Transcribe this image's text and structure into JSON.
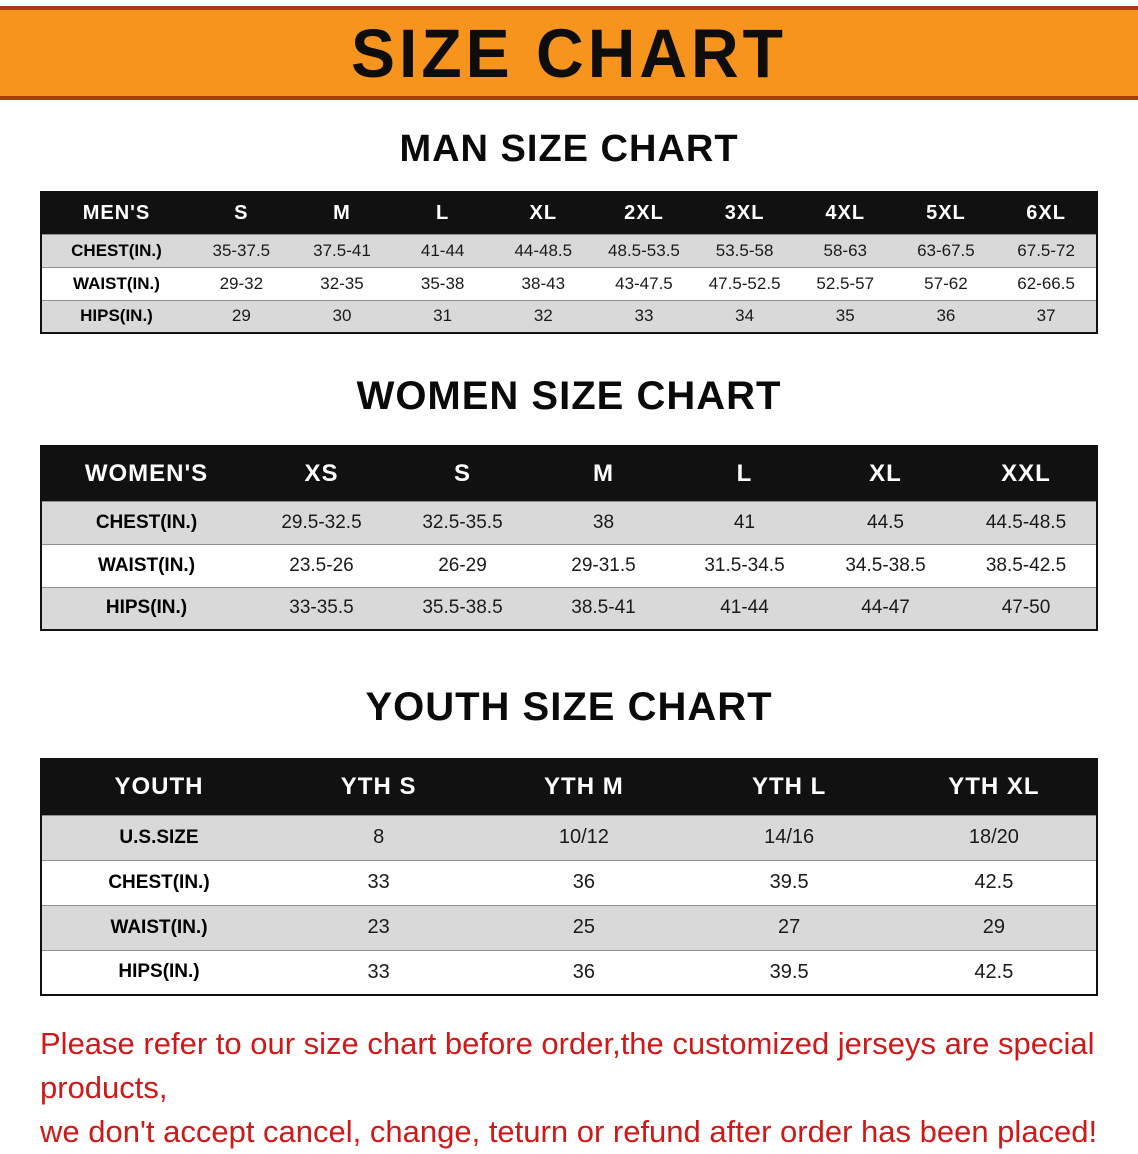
{
  "banner": {
    "title": "SIZE CHART"
  },
  "colors": {
    "banner_bg": "#f7941d",
    "banner_border": "#a83c0a",
    "header_bg": "#111111",
    "row_alt": "#d9d9d9",
    "disclaimer": "#d01818"
  },
  "sections": [
    {
      "heading": "MAN SIZE CHART",
      "table": {
        "header": [
          "MEN'S",
          "S",
          "M",
          "L",
          "XL",
          "2XL",
          "3XL",
          "4XL",
          "5XL",
          "6XL"
        ],
        "rows": [
          {
            "label": "CHEST(IN.)",
            "values": [
              "35-37.5",
              "37.5-41",
              "41-44",
              "44-48.5",
              "48.5-53.5",
              "53.5-58",
              "58-63",
              "63-67.5",
              "67.5-72"
            ]
          },
          {
            "label": "WAIST(IN.)",
            "values": [
              "29-32",
              "32-35",
              "35-38",
              "38-43",
              "43-47.5",
              "47.5-52.5",
              "52.5-57",
              "57-62",
              "62-66.5"
            ]
          },
          {
            "label": "HIPS(IN.)",
            "values": [
              "29",
              "30",
              "31",
              "32",
              "33",
              "34",
              "35",
              "36",
              "37"
            ]
          }
        ]
      }
    },
    {
      "heading": "WOMEN SIZE CHART",
      "table": {
        "header": [
          "WOMEN'S",
          "XS",
          "S",
          "M",
          "L",
          "XL",
          "XXL"
        ],
        "rows": [
          {
            "label": "CHEST(IN.)",
            "values": [
              "29.5-32.5",
              "32.5-35.5",
              "38",
              "41",
              "44.5",
              "44.5-48.5"
            ]
          },
          {
            "label": "WAIST(IN.)",
            "values": [
              "23.5-26",
              "26-29",
              "29-31.5",
              "31.5-34.5",
              "34.5-38.5",
              "38.5-42.5"
            ]
          },
          {
            "label": "HIPS(IN.)",
            "values": [
              "33-35.5",
              "35.5-38.5",
              "38.5-41",
              "41-44",
              "44-47",
              "47-50"
            ]
          }
        ]
      }
    },
    {
      "heading": "YOUTH SIZE CHART",
      "table": {
        "header": [
          "YOUTH",
          "YTH S",
          "YTH M",
          "YTH L",
          "YTH XL"
        ],
        "rows": [
          {
            "label": "U.S.SIZE",
            "values": [
              "8",
              "10/12",
              "14/16",
              "18/20"
            ]
          },
          {
            "label": "CHEST(IN.)",
            "values": [
              "33",
              "36",
              "39.5",
              "42.5"
            ]
          },
          {
            "label": "WAIST(IN.)",
            "values": [
              "23",
              "25",
              "27",
              "29"
            ]
          },
          {
            "label": "HIPS(IN.)",
            "values": [
              "33",
              "36",
              "39.5",
              "42.5"
            ]
          }
        ]
      }
    }
  ],
  "disclaimer": {
    "line1": "Please refer to our size chart before order,the customized jerseys are special products,",
    "line2": "we don't accept cancel, change, teturn or refund after order has been placed!"
  }
}
